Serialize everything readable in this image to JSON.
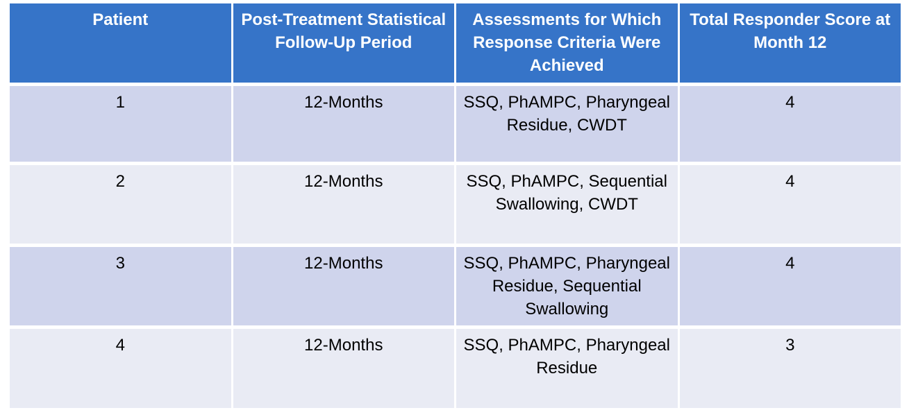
{
  "table": {
    "name": "patient-responder-results",
    "columns": [
      "Patient",
      "Post-Treatment Statistical Follow-Up Period",
      "Assessments for Which Response Criteria Were Achieved",
      "Total Responder Score at Month 12"
    ],
    "rows": [
      {
        "cells": [
          "1",
          "12-Months",
          "SSQ, PhAMPC, Pharyngeal Residue, CWDT",
          "4"
        ]
      },
      {
        "cells": [
          "2",
          "12-Months",
          "SSQ, PhAMPC, Sequential Swallowing, CWDT",
          "4"
        ]
      },
      {
        "cells": [
          "3",
          "12-Months",
          "SSQ, PhAMPC, Pharyngeal Residue, Sequential Swallowing",
          "4"
        ]
      },
      {
        "cells": [
          "4",
          "12-Months",
          "SSQ, PhAMPC, Pharyngeal Residue",
          "3"
        ]
      }
    ]
  },
  "colors": {
    "header_bg": "#3674C8",
    "header_text": "#FFFFFF",
    "row_odd_bg": "#CFD4EC",
    "row_even_bg": "#E9EBF4",
    "body_text": "#000000",
    "page_bg": "#FFFFFF"
  }
}
